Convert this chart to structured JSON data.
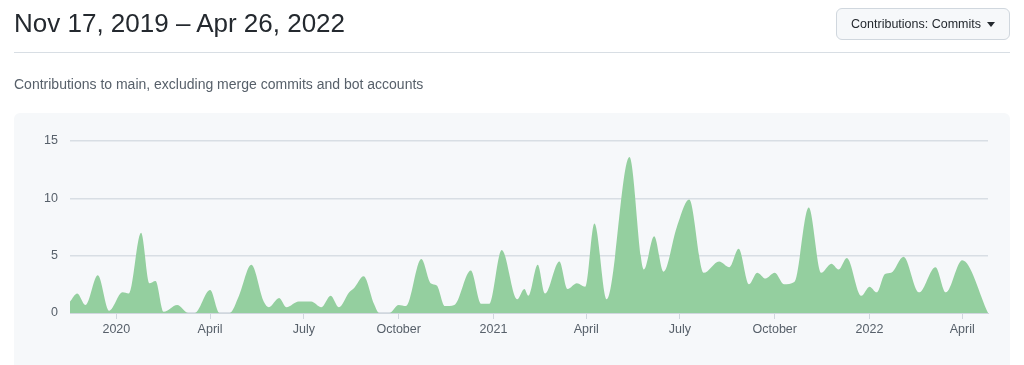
{
  "chart_data": {
    "type": "area",
    "title": "Nov 17, 2019 – Apr 26, 2022",
    "subtitle": "Contributions to main, excluding merge commits and bot accounts",
    "annotations": [
      "Contributions: Commits"
    ],
    "x": [
      "2019-11-17",
      "2019-11-24",
      "2019-12-02",
      "2019-12-14",
      "2019-12-25",
      "2020-01-07",
      "2020-01-13",
      "2020-01-25",
      "2020-02-02",
      "2020-02-08",
      "2020-02-16",
      "2020-02-29",
      "2020-03-11",
      "2020-03-17",
      "2020-04-01",
      "2020-04-10",
      "2020-04-20",
      "2020-04-29",
      "2020-05-11",
      "2020-05-23",
      "2020-05-28",
      "2020-06-07",
      "2020-06-14",
      "2020-06-26",
      "2020-07-08",
      "2020-07-18",
      "2020-07-27",
      "2020-08-04",
      "2020-08-14",
      "2020-08-19",
      "2020-08-28",
      "2020-09-07",
      "2020-09-12",
      "2020-09-22",
      "2020-10-01",
      "2020-10-08",
      "2020-10-23",
      "2020-11-01",
      "2020-11-07",
      "2020-11-15",
      "2020-11-24",
      "2020-12-10",
      "2020-12-20",
      "2020-12-28",
      "2021-01-09",
      "2021-01-24",
      "2021-01-31",
      "2021-02-04",
      "2021-02-13",
      "2021-02-20",
      "2021-03-06",
      "2021-03-14",
      "2021-03-23",
      "2021-03-31",
      "2021-04-09",
      "2021-04-21",
      "2021-05-13",
      "2021-05-27",
      "2021-06-06",
      "2021-06-15",
      "2021-06-28",
      "2021-07-10",
      "2021-07-24",
      "2021-08-08",
      "2021-08-18",
      "2021-08-27",
      "2021-09-06",
      "2021-09-14",
      "2021-09-22",
      "2021-10-01",
      "2021-10-10",
      "2021-10-20",
      "2021-11-03",
      "2021-11-15",
      "2021-11-25",
      "2021-12-02",
      "2021-12-10",
      "2021-12-24",
      "2022-01-01",
      "2022-01-08",
      "2022-01-16",
      "2022-01-22",
      "2022-02-03",
      "2022-02-18",
      "2022-03-06",
      "2022-03-16",
      "2022-04-01",
      "2022-04-26"
    ],
    "series": [
      {
        "color": "#94cf9f",
        "values": [
          1.0,
          1.7,
          0.7,
          3.3,
          0.2,
          1.8,
          1.7,
          7.0,
          2.6,
          2.8,
          0.1,
          0.7,
          0,
          0,
          2.0,
          0,
          0,
          1.5,
          4.2,
          1.0,
          0.5,
          1.3,
          0.5,
          1.0,
          1.0,
          0.5,
          1.5,
          0.5,
          1.8,
          2.2,
          3.2,
          0.8,
          0,
          0,
          0.7,
          0.6,
          4.7,
          2.6,
          2.4,
          0.6,
          0.7,
          3.7,
          0.8,
          0.8,
          5.5,
          1.2,
          2.1,
          1.5,
          4.2,
          1.7,
          4.5,
          2.1,
          2.6,
          2.3,
          7.8,
          1.2,
          13.6,
          3.8,
          6.7,
          3.6,
          7.5,
          9.9,
          3.5,
          4.5,
          4.0,
          5.6,
          2.5,
          3.5,
          3.0,
          3.5,
          2.5,
          2.7,
          9.2,
          3.5,
          4.3,
          3.8,
          4.8,
          1.5,
          2.3,
          1.8,
          3.4,
          3.5,
          4.9,
          1.8,
          4.0,
          1.8,
          4.6,
          0
        ]
      }
    ],
    "xlim": [
      "2019-11-17",
      "2022-04-26"
    ],
    "xticks": [
      {
        "value": "2020-01-01",
        "label": "2020"
      },
      {
        "value": "2020-04-01",
        "label": "April"
      },
      {
        "value": "2020-07-01",
        "label": "July"
      },
      {
        "value": "2020-10-01",
        "label": "October"
      },
      {
        "value": "2021-01-01",
        "label": "2021"
      },
      {
        "value": "2021-04-01",
        "label": "April"
      },
      {
        "value": "2021-07-01",
        "label": "July"
      },
      {
        "value": "2021-10-01",
        "label": "October"
      },
      {
        "value": "2022-01-01",
        "label": "2022"
      },
      {
        "value": "2022-04-01",
        "label": "April"
      }
    ],
    "ylim": [
      0,
      15
    ],
    "yticks": [
      0,
      5,
      10,
      15
    ],
    "grid": "y",
    "legend": false,
    "marker": "none"
  }
}
